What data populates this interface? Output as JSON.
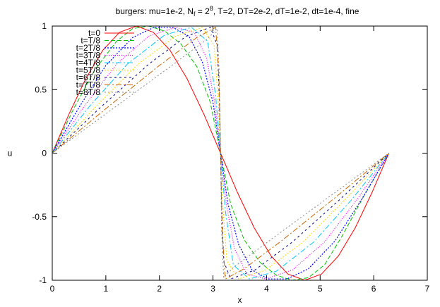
{
  "chart_data": {
    "type": "line",
    "title": {
      "prefix": "burgers: mu=1e-2, N",
      "sub": "f",
      "mid": " = 2",
      "sup": "8",
      "suffix": ", T=2, DT=2e-2, dT=1e-2, dt=1e-4, fine"
    },
    "xlabel": "x",
    "ylabel": "u",
    "xlim": [
      0,
      7
    ],
    "ylim": [
      -1,
      1
    ],
    "xticks": [
      0,
      1,
      2,
      3,
      4,
      5,
      6,
      7
    ],
    "xtick_labels": [
      "0",
      "1",
      "2",
      "3",
      "4",
      "5",
      "6",
      "7"
    ],
    "yticks": [
      -1,
      -0.5,
      0,
      0.5,
      1
    ],
    "ytick_labels": [
      "-1",
      "-0.5",
      "0",
      "0.5",
      "1"
    ],
    "grid": false,
    "legend_position": "top-left",
    "series": [
      {
        "name": "t=0",
        "color": "#ff0000",
        "dash": "",
        "width": 1.0,
        "x": [
          0,
          0.3142,
          0.6283,
          0.9425,
          1.2566,
          1.5708,
          1.885,
          2.1991,
          2.5133,
          2.8274,
          3.1416,
          3.4558,
          3.7699,
          4.0841,
          4.3982,
          4.7124,
          5.0265,
          5.3407,
          5.6549,
          5.969,
          6.2832
        ],
        "y": [
          0,
          0.309,
          0.588,
          0.809,
          0.951,
          1.0,
          0.951,
          0.809,
          0.588,
          0.309,
          0,
          -0.309,
          -0.588,
          -0.809,
          -0.951,
          -1.0,
          -0.951,
          -0.809,
          -0.588,
          -0.309,
          0
        ]
      },
      {
        "name": "t=T/8",
        "color": "#00c000",
        "dash": "6,3",
        "width": 1.0,
        "x": [
          0,
          0.4,
          0.8,
          1.2,
          1.5,
          1.8,
          2.1,
          2.4,
          2.7,
          2.95,
          3.1416,
          3.33,
          3.58,
          3.88,
          4.18,
          4.48,
          4.78,
          5.08,
          5.4,
          5.8,
          6.2832
        ],
        "y": [
          0,
          0.35,
          0.66,
          0.88,
          0.98,
          1.0,
          0.96,
          0.86,
          0.68,
          0.4,
          0,
          -0.4,
          -0.68,
          -0.86,
          -0.96,
          -1.0,
          -0.98,
          -0.88,
          -0.66,
          -0.35,
          0
        ]
      },
      {
        "name": "t=2T/8",
        "color": "#0000ff",
        "dash": "2,2",
        "width": 1.2,
        "x": [
          0,
          0.5,
          1.0,
          1.5,
          1.9,
          2.25,
          2.55,
          2.8,
          3.0,
          3.1416,
          3.28,
          3.48,
          3.73,
          4.03,
          4.38,
          4.78,
          5.28,
          5.78,
          6.2832
        ],
        "y": [
          0,
          0.36,
          0.69,
          0.91,
          0.99,
          0.99,
          0.92,
          0.72,
          0.4,
          0,
          -0.4,
          -0.72,
          -0.92,
          -0.99,
          -0.99,
          -0.91,
          -0.69,
          -0.36,
          0
        ]
      },
      {
        "name": "t=3T/8",
        "color": "#ff00ff",
        "dash": "1,2",
        "width": 1.2,
        "x": [
          0,
          0.6,
          1.2,
          1.8,
          2.3,
          2.65,
          2.88,
          3.03,
          3.1416,
          3.25,
          3.4,
          3.63,
          3.98,
          4.48,
          5.08,
          5.68,
          6.2832
        ],
        "y": [
          0,
          0.37,
          0.7,
          0.92,
          0.99,
          0.95,
          0.75,
          0.4,
          0,
          -0.4,
          -0.75,
          -0.95,
          -0.99,
          -0.92,
          -0.7,
          -0.37,
          0
        ]
      },
      {
        "name": "t=4T/8",
        "color": "#00c8ff",
        "dash": "8,3,2,3",
        "width": 1.0,
        "x": [
          0,
          0.7,
          1.4,
          2.1,
          2.6,
          2.9,
          3.05,
          3.1416,
          3.23,
          3.38,
          3.68,
          4.18,
          4.88,
          5.58,
          6.2832
        ],
        "y": [
          0,
          0.37,
          0.7,
          0.93,
          0.99,
          0.88,
          0.45,
          0,
          -0.45,
          -0.88,
          -0.99,
          -0.93,
          -0.7,
          -0.37,
          0
        ]
      },
      {
        "name": "t=5T/8",
        "color": "#ffd700",
        "dash": "2,2",
        "width": 1.0,
        "x": [
          0,
          0.8,
          1.6,
          2.3,
          2.8,
          3.02,
          3.1,
          3.1416,
          3.18,
          3.26,
          3.48,
          3.98,
          4.68,
          5.48,
          6.2832
        ],
        "y": [
          0,
          0.36,
          0.7,
          0.92,
          0.99,
          0.85,
          0.4,
          0,
          -0.4,
          -0.85,
          -0.99,
          -0.92,
          -0.7,
          -0.36,
          0
        ]
      },
      {
        "name": "t=6T/8",
        "color": "#000080",
        "dash": "3,4",
        "width": 1.0,
        "x": [
          0,
          0.9,
          1.8,
          2.5,
          2.95,
          3.08,
          3.12,
          3.1416,
          3.16,
          3.2,
          3.33,
          3.78,
          4.48,
          5.38,
          6.2832
        ],
        "y": [
          0,
          0.36,
          0.7,
          0.92,
          0.99,
          0.85,
          0.4,
          0,
          -0.4,
          -0.85,
          -0.99,
          -0.92,
          -0.7,
          -0.36,
          0
        ]
      },
      {
        "name": "t=7T/8",
        "color": "#cc6600",
        "dash": "8,3,2,3",
        "width": 1.0,
        "x": [
          0,
          1.0,
          2.0,
          2.7,
          3.05,
          3.11,
          3.1416,
          3.17,
          3.23,
          3.58,
          4.28,
          5.28,
          6.2832
        ],
        "y": [
          0,
          0.35,
          0.69,
          0.91,
          0.99,
          0.6,
          0,
          -0.6,
          -0.99,
          -0.91,
          -0.69,
          -0.35,
          0
        ]
      },
      {
        "name": "t=8T/8",
        "color": "#888888",
        "dash": "2,3",
        "width": 1.0,
        "x": [
          0,
          1.1,
          2.2,
          2.9,
          3.08,
          3.12,
          3.1416,
          3.16,
          3.2,
          3.38,
          4.08,
          5.18,
          6.2832
        ],
        "y": [
          0,
          0.34,
          0.68,
          0.9,
          0.98,
          0.6,
          0,
          -0.6,
          -0.98,
          -0.9,
          -0.68,
          -0.34,
          0
        ]
      }
    ]
  }
}
